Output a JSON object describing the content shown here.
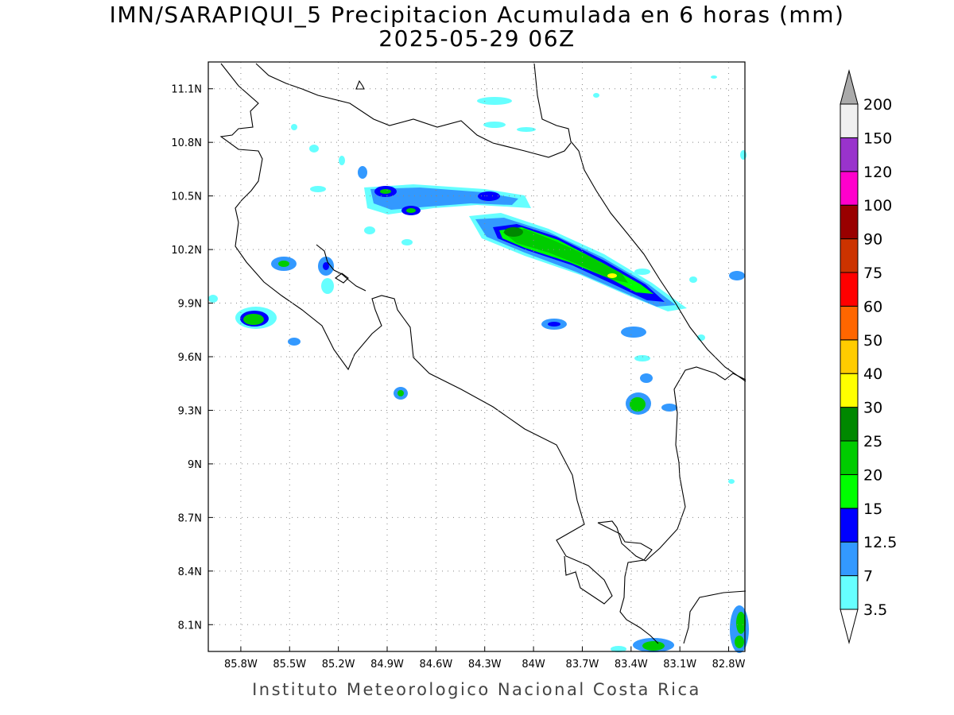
{
  "title_line1": "IMN/SARAPIQUI_5 Precipitacion Acumulada en 6 horas (mm)",
  "title_line2": "2025-05-29 06Z",
  "footer": "Instituto Meteorologico Nacional Costa Rica",
  "map": {
    "lon_range": [
      -86.0,
      -82.7
    ],
    "lat_range": [
      7.95,
      11.25
    ],
    "x_ticks": [
      {
        "lon": -85.8,
        "label": "85.8W"
      },
      {
        "lon": -85.5,
        "label": "85.5W"
      },
      {
        "lon": -85.2,
        "label": "85.2W"
      },
      {
        "lon": -84.9,
        "label": "84.9W"
      },
      {
        "lon": -84.6,
        "label": "84.6W"
      },
      {
        "lon": -84.3,
        "label": "84.3W"
      },
      {
        "lon": -84.0,
        "label": "84W"
      },
      {
        "lon": -83.7,
        "label": "83.7W"
      },
      {
        "lon": -83.4,
        "label": "83.4W"
      },
      {
        "lon": -83.1,
        "label": "83.1W"
      },
      {
        "lon": -82.8,
        "label": "82.8W"
      }
    ],
    "y_ticks": [
      {
        "lat": 11.1,
        "label": "11.1N"
      },
      {
        "lat": 10.8,
        "label": "10.8N"
      },
      {
        "lat": 10.5,
        "label": "10.5N"
      },
      {
        "lat": 10.2,
        "label": "10.2N"
      },
      {
        "lat": 9.9,
        "label": "9.9N"
      },
      {
        "lat": 9.6,
        "label": "9.6N"
      },
      {
        "lat": 9.3,
        "label": "9.3N"
      },
      {
        "lat": 9.0,
        "label": "9N"
      },
      {
        "lat": 8.7,
        "label": "8.7N"
      },
      {
        "lat": 8.4,
        "label": "8.4N"
      },
      {
        "lat": 8.1,
        "label": "8.1N"
      }
    ],
    "grid": true
  },
  "colorbar": {
    "levels": [
      {
        "value": "3.5",
        "color": "#66ffff"
      },
      {
        "value": "7",
        "color": "#3399ff"
      },
      {
        "value": "12.5",
        "color": "#0000ff"
      },
      {
        "value": "15",
        "color": "#00ff00"
      },
      {
        "value": "20",
        "color": "#00cc00"
      },
      {
        "value": "25",
        "color": "#008800"
      },
      {
        "value": "30",
        "color": "#ffff00"
      },
      {
        "value": "40",
        "color": "#ffcc00"
      },
      {
        "value": "50",
        "color": "#ff6600"
      },
      {
        "value": "60",
        "color": "#ff0000"
      },
      {
        "value": "75",
        "color": "#cc3300"
      },
      {
        "value": "90",
        "color": "#990000"
      },
      {
        "value": "100",
        "color": "#ff00cc"
      },
      {
        "value": "120",
        "color": "#9933cc"
      },
      {
        "value": "150",
        "color": "#f0f0f0"
      },
      {
        "value": "200",
        "color": "#aaaaaa"
      }
    ],
    "below_color": "#ffffff"
  }
}
